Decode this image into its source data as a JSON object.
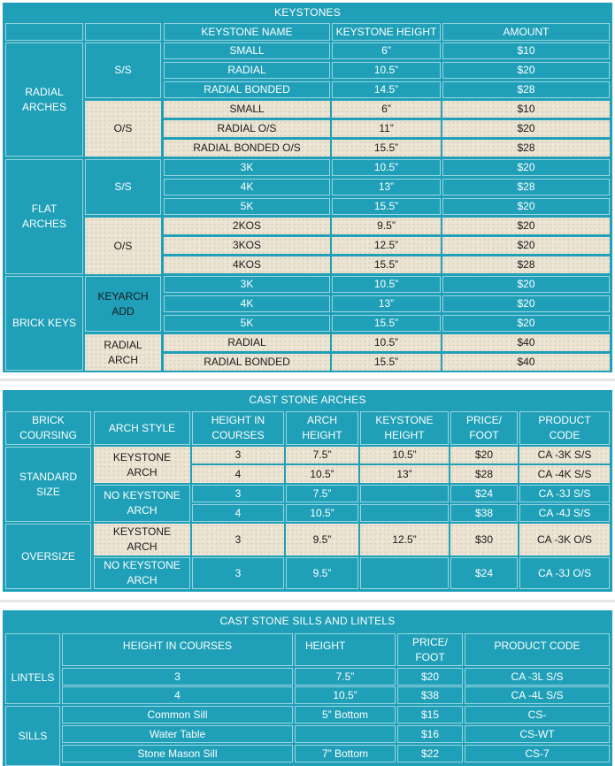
{
  "keystones": {
    "title": "KEYSTONES",
    "headers": {
      "name": "KEYSTONE NAME",
      "height": "KEYSTONE HEIGHT",
      "amount": "AMOUNT"
    },
    "groups": {
      "radial": "RADIAL\nARCHES",
      "flat": "FLAT\nARCHES",
      "brick": "BRICK KEYS"
    },
    "subgroups": {
      "radial_ss": "S/S",
      "radial_os": "O/S",
      "flat_ss": "S/S",
      "flat_os": "O/S",
      "keyarch": "KEYARCH\nADD",
      "radial_arch": "RADIAL\nARCH"
    },
    "rows": [
      {
        "name": "SMALL",
        "height": "6”",
        "amount": "$10"
      },
      {
        "name": "RADIAL",
        "height": "10.5”",
        "amount": "$20"
      },
      {
        "name": "RADIAL BONDED",
        "height": "14.5”",
        "amount": "$28"
      },
      {
        "name": "SMALL",
        "height": "6”",
        "amount": "$10"
      },
      {
        "name": "RADIAL O/S",
        "height": "11”",
        "amount": "$20"
      },
      {
        "name": "RADIAL BONDED O/S",
        "height": "15.5”",
        "amount": "$28"
      },
      {
        "name": "3K",
        "height": "10.5”",
        "amount": "$20"
      },
      {
        "name": "4K",
        "height": "13”",
        "amount": "$28"
      },
      {
        "name": "5K",
        "height": "15.5”",
        "amount": "$20"
      },
      {
        "name": "2KOS",
        "height": "9.5”",
        "amount": "$20"
      },
      {
        "name": "3KOS",
        "height": "12.5”",
        "amount": "$20"
      },
      {
        "name": "4KOS",
        "height": "15.5”",
        "amount": "$28"
      },
      {
        "name": "3K",
        "height": "10.5”",
        "amount": "$20"
      },
      {
        "name": "4K",
        "height": "13”",
        "amount": "$20"
      },
      {
        "name": "5K",
        "height": "15.5”",
        "amount": "$20"
      },
      {
        "name": "RADIAL",
        "height": "10.5”",
        "amount": "$40"
      },
      {
        "name": "RADIAL BONDED",
        "height": "15.5”",
        "amount": "$40"
      }
    ]
  },
  "arches": {
    "title": "CAST STONE ARCHES",
    "headers": {
      "coursing": "BRICK\nCOURSING",
      "style": "ARCH STYLE",
      "courses": "HEIGHT IN\nCOURSES",
      "arch_height": "ARCH\nHEIGHT",
      "keystone_height": "KEYSTONE\nHEIGHT",
      "price": "PRICE/\nFOOT",
      "code": "PRODUCT\nCODE"
    },
    "groups": {
      "standard": "STANDARD\nSIZE",
      "oversize": "OVERSIZE"
    },
    "styles": {
      "std_key": "KEYSTONE\nARCH",
      "std_nokey": "NO KEYSTONE\nARCH",
      "os_key": "KEYSTONE\nARCH",
      "os_nokey": "NO KEYSTONE\nARCH"
    },
    "rows": [
      {
        "courses": "3",
        "arch_height": "7.5”",
        "keystone_height": "10.5”",
        "price": "$20",
        "code": "CA -3K S/S"
      },
      {
        "courses": "4",
        "arch_height": "10.5”",
        "keystone_height": "13”",
        "price": "$28",
        "code": "CA -4K S/S"
      },
      {
        "courses": "3",
        "arch_height": "7.5”",
        "keystone_height": "",
        "price": "$24",
        "code": "CA -3J S/S"
      },
      {
        "courses": "4",
        "arch_height": "10.5”",
        "keystone_height": "",
        "price": "$38",
        "code": "CA -4J S/S"
      },
      {
        "courses": "3",
        "arch_height": "9.5”",
        "keystone_height": "12.5”",
        "price": "$30",
        "code": "CA -3K O/S"
      },
      {
        "courses": "3",
        "arch_height": "9.5”",
        "keystone_height": "",
        "price": "$24",
        "code": "CA -3J O/S"
      }
    ]
  },
  "sills": {
    "title": "CAST STONE SILLS AND LINTELS",
    "headers": {
      "courses": "HEIGHT IN COURSES",
      "height": "HEIGHT",
      "price": "PRICE/\nFOOT",
      "code": "PRODUCT CODE"
    },
    "groups": {
      "lintels": "LINTELS",
      "sills": "SILLS"
    },
    "rows": [
      {
        "courses": "3",
        "height": "7.5”",
        "price": "$20",
        "code": "CA -3L S/S"
      },
      {
        "courses": "4",
        "height": "10.5”",
        "price": "$38",
        "code": "CA -4L S/S"
      },
      {
        "courses": "Common Sill",
        "height": "5” Bottom",
        "price": "$15",
        "code": "CS-"
      },
      {
        "courses": "Water Table",
        "height": "",
        "price": "$16",
        "code": "CS-WT"
      },
      {
        "courses": "Stone Mason Sill",
        "height": "7” Bottom",
        "price": "$22",
        "code": "CS-7"
      }
    ]
  },
  "colors": {
    "teal": "#1fa0b8",
    "cream": "#ece4d3",
    "divider": "#e6e6e6"
  }
}
